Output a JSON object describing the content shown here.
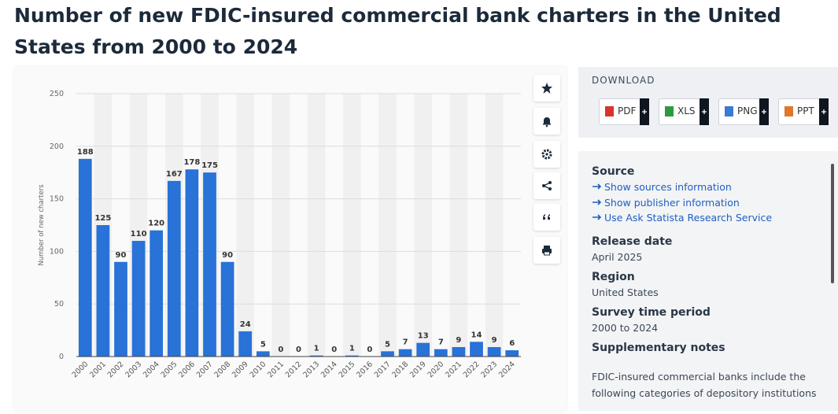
{
  "page_title": "Number of new FDIC-insured commercial bank charters in the United States from 2000 to 2024",
  "chart_data": {
    "type": "bar",
    "y_label": "Number of new charters",
    "categories": [
      "2000",
      "2001",
      "2002",
      "2003",
      "2004",
      "2005",
      "2006",
      "2007",
      "2008",
      "2009",
      "2010",
      "2011",
      "2012",
      "2013",
      "2014",
      "2015",
      "2016",
      "2017",
      "2018",
      "2019",
      "2020",
      "2021",
      "2022",
      "2023",
      "2024"
    ],
    "values": [
      188,
      125,
      90,
      110,
      120,
      167,
      178,
      175,
      90,
      24,
      5,
      0,
      0,
      1,
      0,
      1,
      0,
      5,
      7,
      13,
      7,
      9,
      14,
      9,
      6
    ],
    "color": "#2872d8",
    "ylim": [
      0,
      250
    ],
    "yticks": [
      0,
      50,
      100,
      150,
      200,
      250
    ],
    "grid": true
  },
  "download": {
    "title": "DOWNLOAD",
    "formats": [
      "PDF",
      "XLS",
      "PNG",
      "PPT"
    ]
  },
  "details": {
    "source_title": "Source",
    "links": [
      "Show sources information",
      "Show publisher information",
      "Use Ask Statista Research Service"
    ],
    "fields": [
      {
        "label": "Release date",
        "value": "April 2025"
      },
      {
        "label": "Region",
        "value": "United States"
      },
      {
        "label": "Survey time period",
        "value": "2000 to 2024"
      }
    ],
    "notes_title": "Supplementary notes",
    "notes_text": "FDIC-insured commercial banks include the following categories of depository institutions"
  }
}
